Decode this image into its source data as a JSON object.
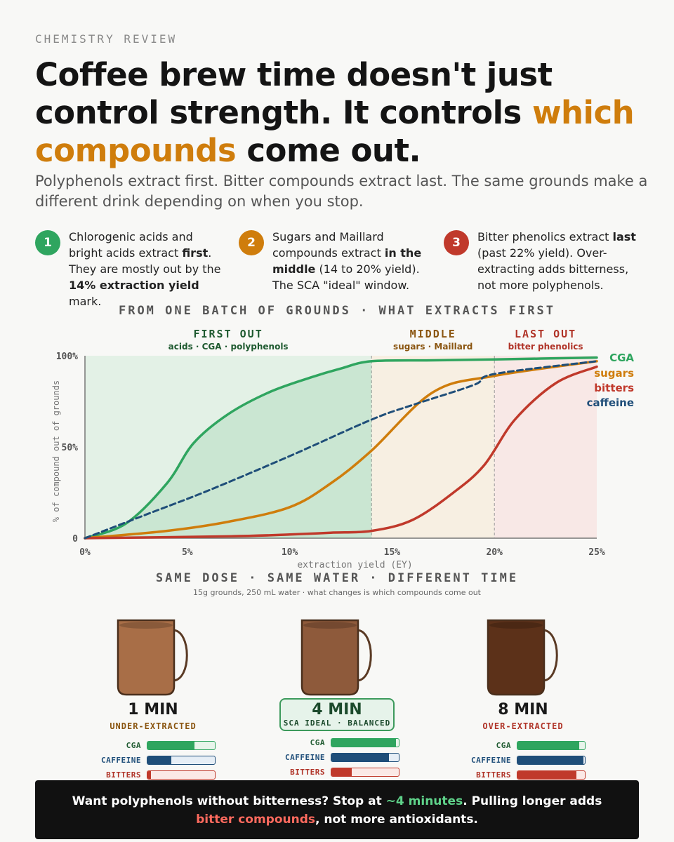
{
  "kicker": "CHEMISTRY REVIEW",
  "headline": {
    "part1": "Coffee brew time doesn't just control strength. It controls ",
    "highlight": "which compounds",
    "part2": " come out."
  },
  "subhead": "Polyphenols extract first. Bitter compounds extract last. The same grounds make a different drink depending on when you stop.",
  "steps": [
    {
      "num": "1",
      "color": "#2fa55f",
      "t1": "Chlorogenic acids and bright acids extract ",
      "b1": "first",
      "t2": ". They are mostly out by the ",
      "b2": "14% extraction yield",
      "t3": " mark."
    },
    {
      "num": "2",
      "color": "#cf7d0c",
      "t1": "Sugars and Maillard compounds extract ",
      "b1": "in the middle",
      "t2": " (14 to 20% yield). The SCA \"ideal\" window.",
      "b2": "",
      "t3": ""
    },
    {
      "num": "3",
      "color": "#c0392b",
      "t1": "Bitter phenolics extract ",
      "b1": "last",
      "t2": " (past 22% yield). Over-extracting adds bitterness, not more polyphenols.",
      "b2": "",
      "t3": ""
    }
  ],
  "chart_section_title": "FROM ONE BATCH OF GROUNDS · WHAT EXTRACTS FIRST",
  "chart_data": {
    "type": "line",
    "xlabel": "extraction yield (EY)",
    "ylabel": "% of compound out of grounds",
    "xlim": [
      0,
      25
    ],
    "ylim": [
      0,
      100
    ],
    "x_ticks": [
      "0%",
      "5%",
      "10%",
      "15%",
      "20%",
      "25%"
    ],
    "y_ticks": [
      "0",
      "50%",
      "100%"
    ],
    "zones": [
      {
        "from": 0,
        "to": 14,
        "title": "FIRST OUT",
        "subtitle": "acids · CGA · polyphenols",
        "fill": "#e3f1e6",
        "color": "#1f5a30"
      },
      {
        "from": 14,
        "to": 20,
        "title": "MIDDLE",
        "subtitle": "sugars · Maillard",
        "fill": "#f7efe2",
        "color": "#8a5510"
      },
      {
        "from": 20,
        "to": 25,
        "title": "LAST OUT",
        "subtitle": "bitter phenolics",
        "fill": "#f8e8e6",
        "color": "#b03428"
      }
    ],
    "series": [
      {
        "name": "CGA",
        "color": "#2fa55f",
        "dash": false,
        "fill_under": true,
        "x": [
          0,
          2,
          4,
          5.3,
          7,
          9,
          11,
          12.5,
          14,
          17,
          20,
          25
        ],
        "y": [
          0,
          8,
          30,
          52,
          68,
          80,
          88,
          93,
          97,
          97.5,
          98,
          99
        ]
      },
      {
        "name": "sugars",
        "color": "#cf7d0c",
        "dash": false,
        "fill_under": false,
        "x": [
          0,
          4,
          7,
          10,
          12,
          14,
          17,
          20,
          25
        ],
        "y": [
          0,
          4,
          9,
          17,
          30,
          48,
          80,
          89,
          97
        ]
      },
      {
        "name": "bitters",
        "color": "#c0392b",
        "dash": false,
        "fill_under": false,
        "x": [
          0,
          7,
          10,
          12,
          14,
          16,
          18,
          19.5,
          21,
          23,
          25
        ],
        "y": [
          0,
          1,
          2,
          3,
          4,
          10,
          25,
          40,
          65,
          85,
          94
        ]
      },
      {
        "name": "caffeine",
        "color": "#1f4e79",
        "dash": true,
        "fill_under": false,
        "x": [
          0,
          3,
          6,
          10,
          14,
          16,
          19,
          20,
          25
        ],
        "y": [
          0,
          13,
          26,
          45,
          65,
          73,
          84,
          90,
          97
        ]
      }
    ]
  },
  "compare_title": "SAME DOSE · SAME WATER · DIFFERENT TIME",
  "compare_subtitle": "15g grounds, 250 mL water · what changes is which compounds come out",
  "cups": [
    {
      "time": "1 MIN",
      "verdict": "UNDER-EXTRACTED",
      "verdict_color": "#8a5510",
      "coffee_color": "#a86e47",
      "ideal": false,
      "bars": {
        "cga": 0.7,
        "caffeine": 0.35,
        "bitters": 0.05
      }
    },
    {
      "time": "4 MIN",
      "verdict": "SCA IDEAL · BALANCED",
      "verdict_color": "#1c4a2c",
      "coffee_color": "#8e5a3b",
      "ideal": true,
      "bars": {
        "cga": 0.96,
        "caffeine": 0.85,
        "bitters": 0.3
      }
    },
    {
      "time": "8 MIN",
      "verdict": "OVER-EXTRACTED",
      "verdict_color": "#b03428",
      "coffee_color": "#5c3119",
      "ideal": false,
      "bars": {
        "cga": 0.92,
        "caffeine": 0.98,
        "bitters": 0.88
      }
    }
  ],
  "bar_labels": {
    "cga": {
      "text": "CGA",
      "color": "#1f5a30",
      "fill": "#2fa55f",
      "track": "#e8f4eb"
    },
    "caffeine": {
      "text": "CAFFEINE",
      "color": "#1f4e79",
      "fill": "#1f4e79",
      "track": "#e6eef6"
    },
    "bitters": {
      "text": "BITTERS",
      "color": "#b03428",
      "fill": "#c0392b",
      "track": "#fbe9e6"
    }
  },
  "banner": {
    "t1": "Want polyphenols without bitterness? Stop at ",
    "green": "~4 minutes",
    "t2": ". Pulling longer adds ",
    "red": "bitter compounds",
    "t3": ", not more antioxidants."
  }
}
